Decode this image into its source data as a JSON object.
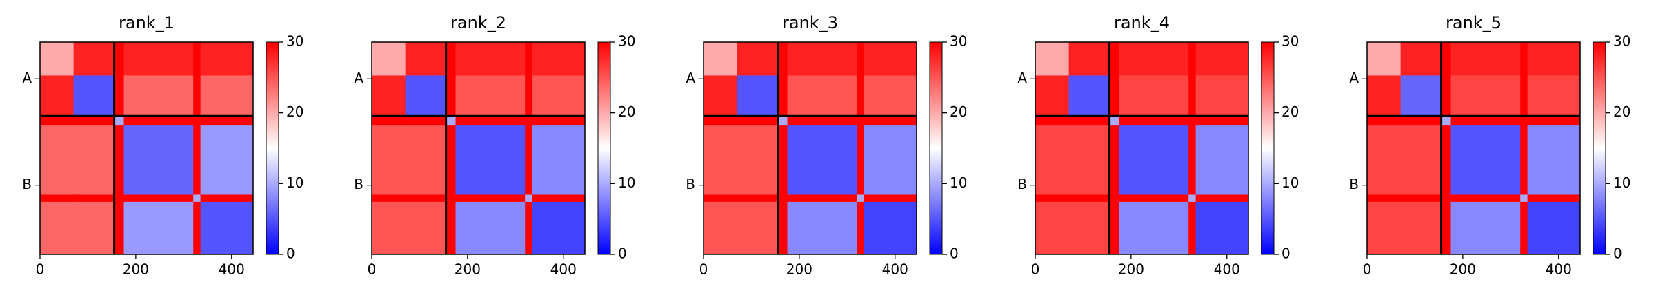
{
  "chart_data": [
    {
      "type": "heatmap",
      "title": "rank_1",
      "edges": [
        0,
        70,
        155,
        175,
        320,
        335,
        445
      ],
      "values": [
        [
          20,
          28,
          30,
          28,
          30,
          28
        ],
        [
          28,
          5,
          30,
          24,
          30,
          24
        ],
        [
          30,
          30,
          10,
          30,
          30,
          30
        ],
        [
          24,
          24,
          30,
          6,
          30,
          9
        ],
        [
          30,
          30,
          30,
          30,
          10,
          30
        ],
        [
          24,
          24,
          30,
          9,
          30,
          5
        ]
      ],
      "chain_breaks": [
        155
      ],
      "xlim": [
        0,
        445
      ],
      "ylim": [
        445,
        0
      ],
      "xticks": [
        0,
        200,
        400
      ],
      "yticks": [
        {
          "value": 77,
          "label": "A"
        },
        {
          "value": 300,
          "label": "B"
        }
      ],
      "clim": [
        0,
        30
      ],
      "cticks": [
        0,
        10,
        20,
        30
      ],
      "colormap": [
        "#0000ff",
        "#ffffff",
        "#ff0000"
      ]
    },
    {
      "type": "heatmap",
      "title": "rank_2",
      "edges": [
        0,
        70,
        155,
        175,
        320,
        335,
        445
      ],
      "values": [
        [
          20,
          28,
          30,
          28,
          30,
          28
        ],
        [
          28,
          5,
          30,
          25,
          30,
          25
        ],
        [
          30,
          30,
          10,
          30,
          30,
          30
        ],
        [
          25,
          25,
          30,
          5,
          30,
          8
        ],
        [
          30,
          30,
          30,
          30,
          10,
          30
        ],
        [
          25,
          25,
          30,
          8,
          30,
          4
        ]
      ],
      "chain_breaks": [
        155
      ],
      "xlim": [
        0,
        445
      ],
      "ylim": [
        445,
        0
      ],
      "xticks": [
        0,
        200,
        400
      ],
      "yticks": [
        {
          "value": 77,
          "label": "A"
        },
        {
          "value": 300,
          "label": "B"
        }
      ],
      "clim": [
        0,
        30
      ],
      "cticks": [
        0,
        10,
        20,
        30
      ],
      "colormap": [
        "#0000ff",
        "#ffffff",
        "#ff0000"
      ]
    },
    {
      "type": "heatmap",
      "title": "rank_3",
      "edges": [
        0,
        70,
        155,
        175,
        320,
        335,
        445
      ],
      "values": [
        [
          20,
          28,
          30,
          28,
          30,
          28
        ],
        [
          28,
          5,
          30,
          25,
          30,
          25
        ],
        [
          30,
          30,
          10,
          30,
          30,
          30
        ],
        [
          25,
          25,
          30,
          5,
          30,
          8
        ],
        [
          30,
          30,
          30,
          30,
          10,
          30
        ],
        [
          25,
          25,
          30,
          8,
          30,
          4
        ]
      ],
      "chain_breaks": [
        155
      ],
      "xlim": [
        0,
        445
      ],
      "ylim": [
        445,
        0
      ],
      "xticks": [
        0,
        200,
        400
      ],
      "yticks": [
        {
          "value": 77,
          "label": "A"
        },
        {
          "value": 300,
          "label": "B"
        }
      ],
      "clim": [
        0,
        30
      ],
      "cticks": [
        0,
        10,
        20,
        30
      ],
      "colormap": [
        "#0000ff",
        "#ffffff",
        "#ff0000"
      ]
    },
    {
      "type": "heatmap",
      "title": "rank_4",
      "edges": [
        0,
        70,
        155,
        175,
        320,
        335,
        445
      ],
      "values": [
        [
          20,
          28,
          30,
          28,
          30,
          28
        ],
        [
          28,
          5,
          30,
          26,
          30,
          26
        ],
        [
          30,
          30,
          10,
          30,
          30,
          30
        ],
        [
          26,
          26,
          30,
          5,
          30,
          8
        ],
        [
          30,
          30,
          30,
          30,
          10,
          30
        ],
        [
          26,
          26,
          30,
          8,
          30,
          4
        ]
      ],
      "chain_breaks": [
        155
      ],
      "xlim": [
        0,
        445
      ],
      "ylim": [
        445,
        0
      ],
      "xticks": [
        0,
        200,
        400
      ],
      "yticks": [
        {
          "value": 77,
          "label": "A"
        },
        {
          "value": 300,
          "label": "B"
        }
      ],
      "clim": [
        0,
        30
      ],
      "cticks": [
        0,
        10,
        20,
        30
      ],
      "colormap": [
        "#0000ff",
        "#ffffff",
        "#ff0000"
      ]
    },
    {
      "type": "heatmap",
      "title": "rank_5",
      "edges": [
        0,
        70,
        155,
        175,
        320,
        335,
        445
      ],
      "values": [
        [
          20,
          28,
          30,
          28,
          30,
          28
        ],
        [
          28,
          6,
          30,
          26,
          30,
          26
        ],
        [
          30,
          30,
          10,
          30,
          30,
          30
        ],
        [
          26,
          26,
          30,
          5,
          30,
          8
        ],
        [
          30,
          30,
          30,
          30,
          10,
          30
        ],
        [
          26,
          26,
          30,
          8,
          30,
          4
        ]
      ],
      "chain_breaks": [
        155
      ],
      "xlim": [
        0,
        445
      ],
      "ylim": [
        445,
        0
      ],
      "xticks": [
        0,
        200,
        400
      ],
      "yticks": [
        {
          "value": 77,
          "label": "A"
        },
        {
          "value": 300,
          "label": "B"
        }
      ],
      "clim": [
        0,
        30
      ],
      "cticks": [
        0,
        10,
        20,
        30
      ],
      "colormap": [
        "#0000ff",
        "#ffffff",
        "#ff0000"
      ]
    }
  ]
}
